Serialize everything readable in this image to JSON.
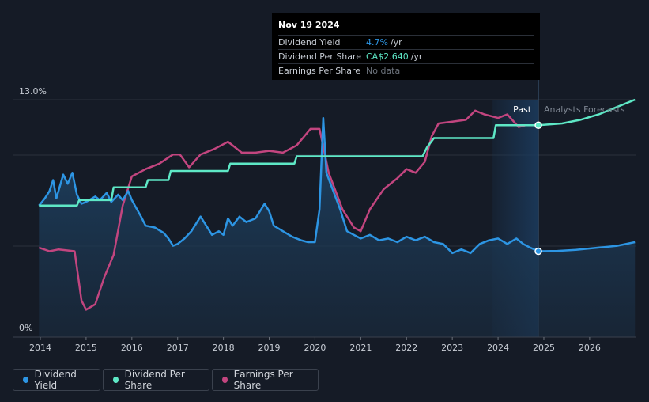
{
  "chart_data": {
    "type": "line",
    "y_axis": {
      "min": 0,
      "max": 13.0,
      "unit": "%",
      "labels": [
        "13.0%",
        "0%"
      ]
    },
    "x_axis": {
      "ticks": [
        "2014",
        "2015",
        "2016",
        "2017",
        "2018",
        "2019",
        "2020",
        "2021",
        "2022",
        "2023",
        "2024",
        "2025",
        "2026"
      ]
    },
    "sections": {
      "past_label": "Past",
      "forecast_label": "Analysts Forecasts",
      "divider_date": 2024.88
    },
    "series": [
      {
        "name": "Dividend Yield",
        "color": "#2d95e3",
        "values": [
          [
            2013.97,
            7.2
          ],
          [
            2014.1,
            7.6
          ],
          [
            2014.2,
            8.0
          ],
          [
            2014.28,
            8.6
          ],
          [
            2014.35,
            7.6
          ],
          [
            2014.5,
            8.9
          ],
          [
            2014.6,
            8.4
          ],
          [
            2014.7,
            9.0
          ],
          [
            2014.8,
            7.8
          ],
          [
            2014.9,
            7.3
          ],
          [
            2015.0,
            7.4
          ],
          [
            2015.2,
            7.7
          ],
          [
            2015.3,
            7.5
          ],
          [
            2015.45,
            7.9
          ],
          [
            2015.55,
            7.4
          ],
          [
            2015.7,
            7.8
          ],
          [
            2015.8,
            7.5
          ],
          [
            2015.92,
            8.0
          ],
          [
            2016.0,
            7.5
          ],
          [
            2016.2,
            6.6
          ],
          [
            2016.3,
            6.1
          ],
          [
            2016.5,
            6.0
          ],
          [
            2016.7,
            5.7
          ],
          [
            2016.8,
            5.4
          ],
          [
            2016.9,
            5.0
          ],
          [
            2017.0,
            5.1
          ],
          [
            2017.15,
            5.4
          ],
          [
            2017.3,
            5.8
          ],
          [
            2017.5,
            6.6
          ],
          [
            2017.6,
            6.2
          ],
          [
            2017.75,
            5.6
          ],
          [
            2017.9,
            5.8
          ],
          [
            2018.0,
            5.6
          ],
          [
            2018.1,
            6.5
          ],
          [
            2018.2,
            6.1
          ],
          [
            2018.35,
            6.6
          ],
          [
            2018.5,
            6.3
          ],
          [
            2018.7,
            6.5
          ],
          [
            2018.9,
            7.3
          ],
          [
            2019.0,
            6.9
          ],
          [
            2019.1,
            6.1
          ],
          [
            2019.3,
            5.8
          ],
          [
            2019.5,
            5.5
          ],
          [
            2019.7,
            5.3
          ],
          [
            2019.85,
            5.2
          ],
          [
            2020.0,
            5.2
          ],
          [
            2020.1,
            7.0
          ],
          [
            2020.18,
            12.0
          ],
          [
            2020.25,
            9.0
          ],
          [
            2020.4,
            8.0
          ],
          [
            2020.55,
            7.0
          ],
          [
            2020.7,
            5.8
          ],
          [
            2020.85,
            5.6
          ],
          [
            2021.0,
            5.4
          ],
          [
            2021.2,
            5.6
          ],
          [
            2021.4,
            5.3
          ],
          [
            2021.6,
            5.4
          ],
          [
            2021.8,
            5.2
          ],
          [
            2022.0,
            5.5
          ],
          [
            2022.2,
            5.3
          ],
          [
            2022.4,
            5.5
          ],
          [
            2022.6,
            5.2
          ],
          [
            2022.8,
            5.1
          ],
          [
            2023.0,
            4.6
          ],
          [
            2023.2,
            4.8
          ],
          [
            2023.4,
            4.6
          ],
          [
            2023.6,
            5.1
          ],
          [
            2023.8,
            5.3
          ],
          [
            2024.0,
            5.4
          ],
          [
            2024.2,
            5.1
          ],
          [
            2024.4,
            5.4
          ],
          [
            2024.55,
            5.1
          ],
          [
            2024.7,
            4.9
          ],
          [
            2024.88,
            4.7
          ]
        ],
        "forecast": [
          [
            2024.88,
            4.7
          ],
          [
            2025.3,
            4.72
          ],
          [
            2025.7,
            4.78
          ],
          [
            2026.2,
            4.9
          ],
          [
            2026.6,
            5.0
          ],
          [
            2026.99,
            5.2
          ]
        ]
      },
      {
        "name": "Dividend Per Share",
        "color": "#5ee8c6",
        "values": [
          [
            2013.97,
            7.2
          ],
          [
            2014.8,
            7.2
          ],
          [
            2014.85,
            7.5
          ],
          [
            2015.55,
            7.5
          ],
          [
            2015.6,
            8.2
          ],
          [
            2016.3,
            8.2
          ],
          [
            2016.35,
            8.6
          ],
          [
            2016.8,
            8.6
          ],
          [
            2016.85,
            9.1
          ],
          [
            2018.1,
            9.1
          ],
          [
            2018.15,
            9.5
          ],
          [
            2019.55,
            9.5
          ],
          [
            2019.6,
            9.9
          ],
          [
            2022.35,
            9.9
          ],
          [
            2022.45,
            10.4
          ],
          [
            2022.6,
            10.9
          ],
          [
            2023.9,
            10.9
          ],
          [
            2023.95,
            11.6
          ],
          [
            2024.88,
            11.6
          ]
        ],
        "forecast": [
          [
            2024.88,
            11.6
          ],
          [
            2025.4,
            11.7
          ],
          [
            2025.8,
            11.9
          ],
          [
            2026.2,
            12.2
          ],
          [
            2026.6,
            12.6
          ],
          [
            2026.99,
            13.0
          ]
        ]
      },
      {
        "name": "Earnings Per Share",
        "color": "#c2457f",
        "values": [
          [
            2013.97,
            4.9
          ],
          [
            2014.2,
            4.7
          ],
          [
            2014.4,
            4.8
          ],
          [
            2014.75,
            4.7
          ],
          [
            2014.9,
            2.0
          ],
          [
            2015.0,
            1.5
          ],
          [
            2015.2,
            1.8
          ],
          [
            2015.4,
            3.3
          ],
          [
            2015.6,
            4.5
          ],
          [
            2015.8,
            7.2
          ],
          [
            2016.0,
            8.8
          ],
          [
            2016.3,
            9.2
          ],
          [
            2016.6,
            9.5
          ],
          [
            2016.9,
            10.0
          ],
          [
            2017.05,
            10.0
          ],
          [
            2017.25,
            9.3
          ],
          [
            2017.5,
            10.0
          ],
          [
            2017.8,
            10.3
          ],
          [
            2018.1,
            10.7
          ],
          [
            2018.4,
            10.1
          ],
          [
            2018.7,
            10.1
          ],
          [
            2019.0,
            10.2
          ],
          [
            2019.3,
            10.1
          ],
          [
            2019.6,
            10.5
          ],
          [
            2019.9,
            11.4
          ],
          [
            2020.1,
            11.4
          ],
          [
            2020.3,
            9.0
          ],
          [
            2020.6,
            7.0
          ],
          [
            2020.85,
            6.0
          ],
          [
            2021.0,
            5.8
          ],
          [
            2021.2,
            7.0
          ],
          [
            2021.5,
            8.1
          ],
          [
            2021.8,
            8.7
          ],
          [
            2022.0,
            9.2
          ],
          [
            2022.2,
            9.0
          ],
          [
            2022.4,
            9.6
          ],
          [
            2022.55,
            11.0
          ],
          [
            2022.7,
            11.7
          ],
          [
            2023.0,
            11.8
          ],
          [
            2023.3,
            11.9
          ],
          [
            2023.5,
            12.4
          ],
          [
            2023.7,
            12.2
          ],
          [
            2024.0,
            12.0
          ],
          [
            2024.2,
            12.2
          ],
          [
            2024.45,
            11.5
          ],
          [
            2024.6,
            11.6
          ],
          [
            2024.88,
            11.6
          ]
        ]
      }
    ],
    "tooltip": {
      "date": "Nov 19 2024",
      "rows": [
        {
          "label": "Dividend Yield",
          "value": "4.7%",
          "unit": "/yr",
          "color": "#2d95e3"
        },
        {
          "label": "Dividend Per Share",
          "value": "CA$2.640",
          "unit": "/yr",
          "color": "#5ee8c6"
        },
        {
          "label": "Earnings Per Share",
          "value": "No data",
          "unit": "",
          "color": "#6c727c"
        }
      ]
    },
    "legend": [
      {
        "label": "Dividend Yield",
        "color": "#2d95e3"
      },
      {
        "label": "Dividend Per Share",
        "color": "#5ee8c6"
      },
      {
        "label": "Earnings Per Share",
        "color": "#c2457f"
      }
    ]
  }
}
